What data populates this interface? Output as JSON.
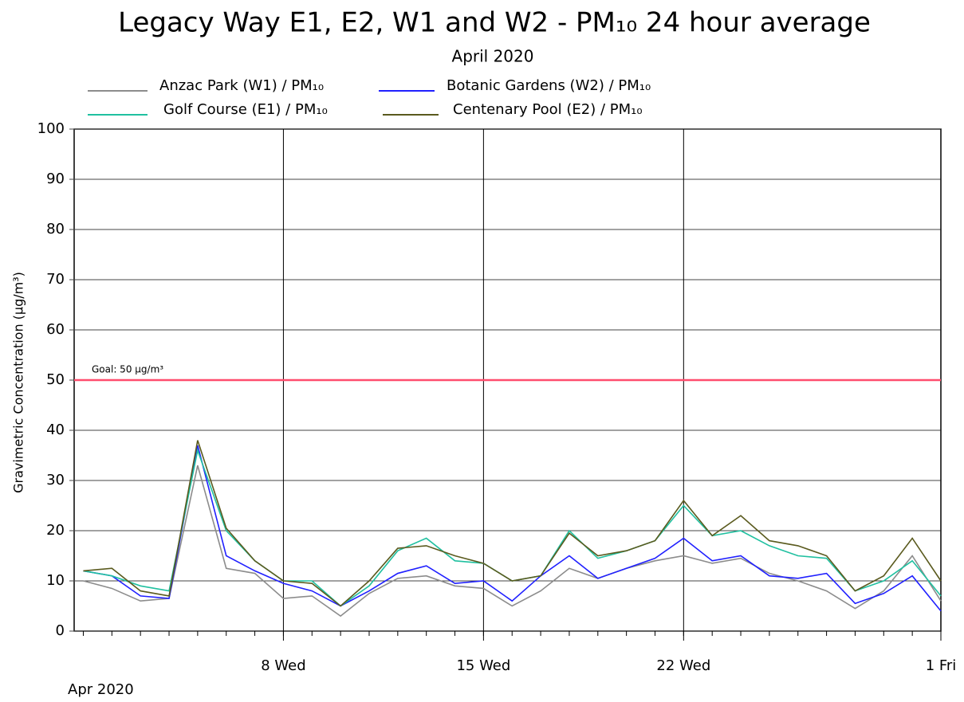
{
  "chart_data": {
    "type": "line",
    "title": "Legacy Way E1, E2, W1 and W2 - PM₁₀ 24 hour average",
    "subtitle": "April 2020",
    "y_label": "Gravimetric Concentration (µg/m³)",
    "x_label": "Apr 2020",
    "x": [
      1,
      2,
      3,
      4,
      5,
      6,
      7,
      8,
      9,
      10,
      11,
      12,
      13,
      14,
      15,
      16,
      17,
      18,
      19,
      20,
      21,
      22,
      23,
      24,
      25,
      26,
      27,
      28,
      29,
      30,
      31
    ],
    "series": [
      {
        "name": "Anzac Park (W1) / PM₁₀",
        "color": "#8c8c8c",
        "values": [
          10,
          8.5,
          6,
          6.5,
          33,
          12.5,
          11.5,
          6.5,
          7,
          3,
          7.5,
          10.5,
          11,
          9,
          8.5,
          5,
          8,
          12.5,
          10.5,
          12.5,
          14,
          15,
          13.5,
          14.5,
          11.5,
          10,
          8,
          4.5,
          8,
          15,
          6
        ]
      },
      {
        "name": "Botanic Gardens (W2) / PM₁₀",
        "color": "#2020ff",
        "values": [
          12,
          11,
          7,
          6.5,
          37,
          15,
          12,
          9.5,
          8,
          5,
          8,
          11.5,
          13,
          9.5,
          10,
          6,
          11,
          15,
          10.5,
          12.5,
          14.5,
          18.5,
          14,
          15,
          11,
          10.5,
          11.5,
          5.5,
          7.5,
          11,
          4
        ]
      },
      {
        "name": "Golf Course (E1) / PM₁₀",
        "color": "#20c0a0",
        "values": [
          12,
          11,
          9,
          8,
          36,
          20,
          14,
          10,
          10,
          5,
          9,
          16,
          18.5,
          14,
          13.5,
          10,
          11,
          20,
          14.5,
          16,
          18,
          25,
          19,
          20,
          17,
          15,
          14.5,
          8,
          10,
          14,
          7
        ]
      },
      {
        "name": "Centenary Pool (E2) / PM₁₀",
        "color": "#5a5a1e",
        "values": [
          12,
          12.5,
          8,
          7,
          38,
          20.5,
          14,
          10,
          9.5,
          5,
          10,
          16.5,
          17,
          15,
          13.5,
          10,
          11,
          19.5,
          15,
          16,
          18,
          26,
          19,
          23,
          18,
          17,
          15,
          8,
          11,
          18.5,
          10
        ]
      }
    ],
    "reference_line": {
      "value": 50,
      "label": "Goal: 50 µg/m³",
      "color": "#ff4d6d"
    },
    "xlim": [
      0.68,
      31
    ],
    "xticks": [
      {
        "value": 8,
        "label": "8 Wed"
      },
      {
        "value": 15,
        "label": "15 Wed"
      },
      {
        "value": 22,
        "label": "22 Wed"
      },
      {
        "value": 31,
        "label": "1 Fri"
      }
    ],
    "ylim": [
      0,
      100
    ],
    "yticks": [
      0,
      10,
      20,
      30,
      40,
      50,
      60,
      70,
      80,
      90,
      100
    ],
    "grid": true
  }
}
